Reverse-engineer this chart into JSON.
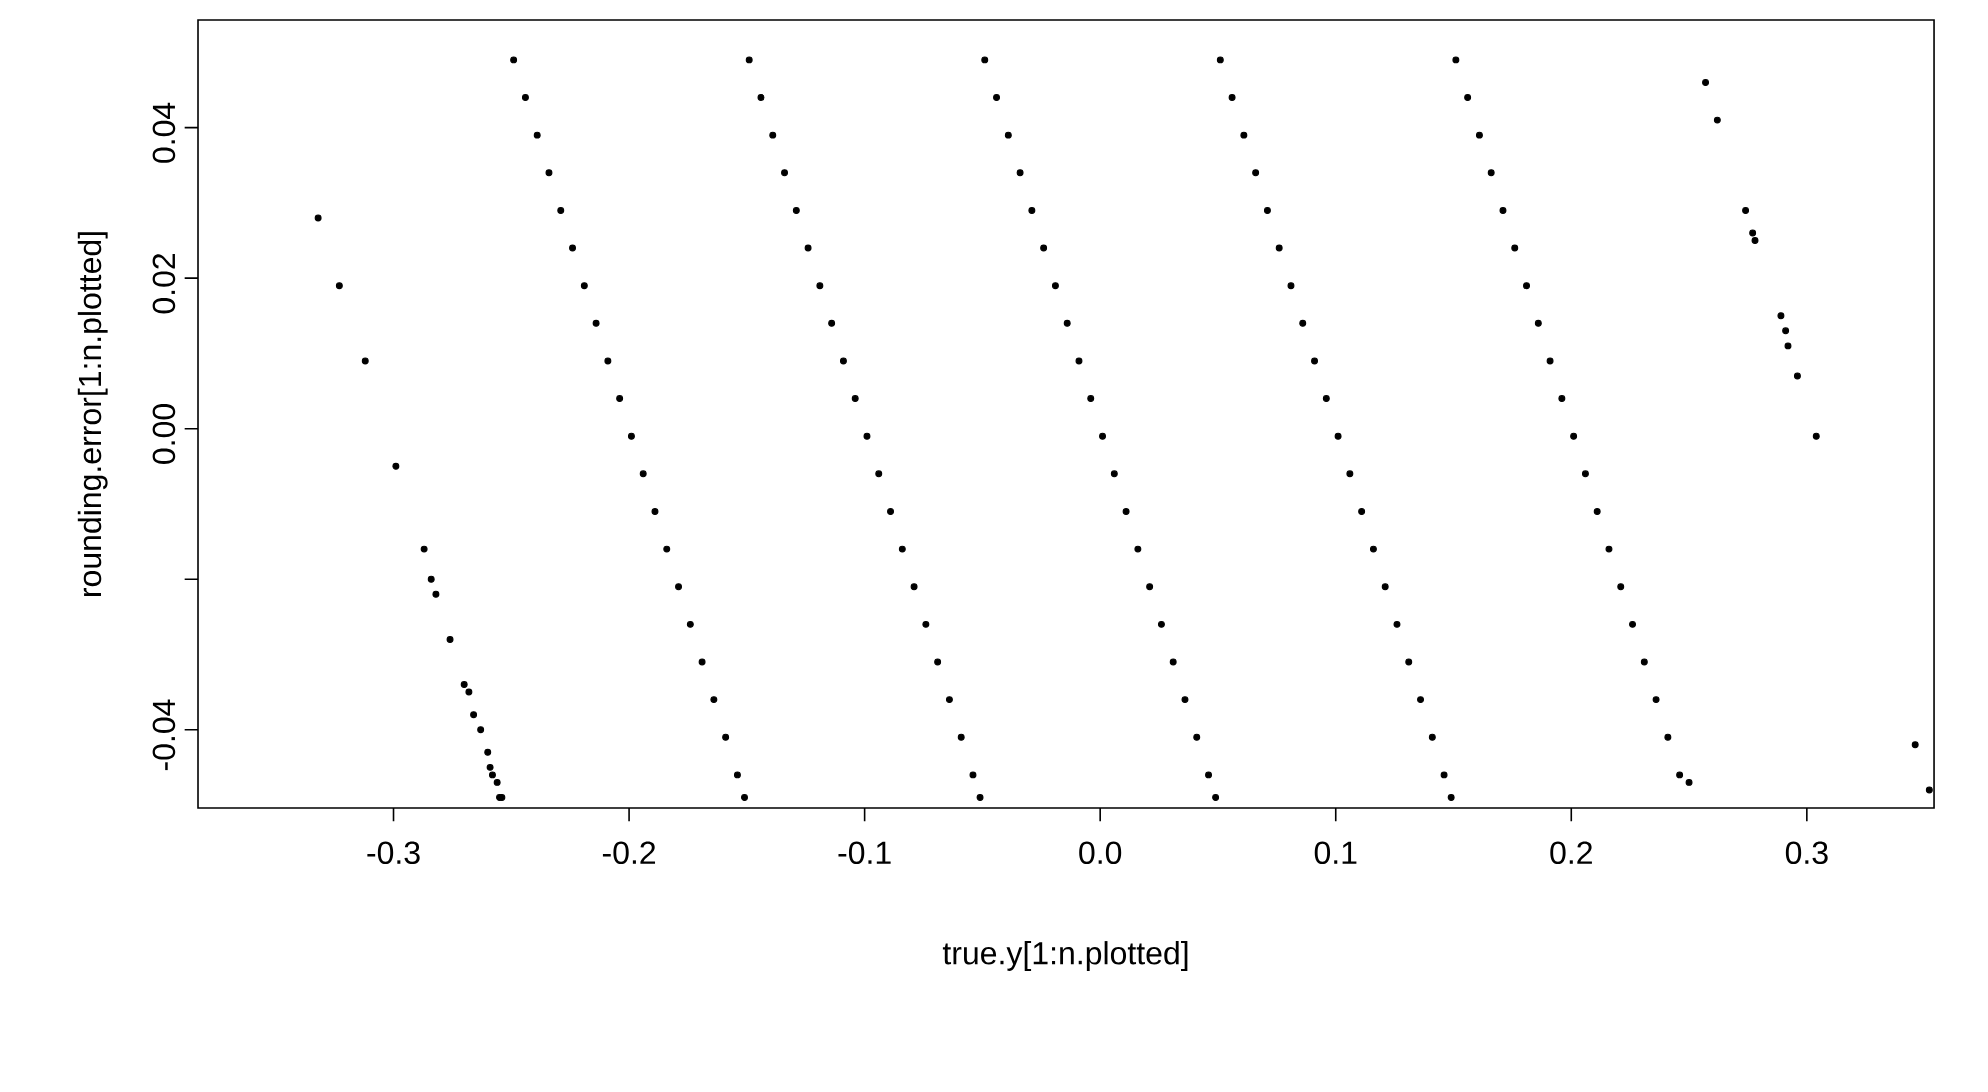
{
  "chart_data": {
    "type": "scatter",
    "xlabel": "true.y[1:n.plotted]",
    "ylabel": "rounding.error[1:n.plotted]",
    "color": "#000000",
    "marker": "circle",
    "xlim": [
      -0.383,
      0.354
    ],
    "ylim": [
      -0.0504,
      0.0543
    ],
    "xticks": [
      -0.3,
      -0.2,
      -0.1,
      {
        "value": 0,
        "label": "0.0"
      },
      0.1,
      0.2,
      0.3
    ],
    "yticks": [
      -0.04,
      {
        "value": -0.02,
        "label": null
      },
      {
        "value": 0,
        "label": "0.00"
      },
      0.02,
      0.04
    ],
    "x": [
      -0.332,
      -0.323,
      -0.312,
      -0.299,
      -0.287,
      -0.284,
      -0.282,
      -0.276,
      -0.27,
      -0.268,
      -0.266,
      -0.263,
      -0.26,
      -0.259,
      -0.258,
      -0.256,
      -0.255,
      -0.254,
      -0.249,
      -0.244,
      -0.239,
      -0.234,
      -0.229,
      -0.224,
      -0.219,
      -0.214,
      -0.209,
      -0.204,
      -0.199,
      -0.194,
      -0.189,
      -0.184,
      -0.179,
      -0.174,
      -0.169,
      -0.164,
      -0.159,
      -0.154,
      -0.151,
      -0.149,
      -0.144,
      -0.139,
      -0.134,
      -0.129,
      -0.124,
      -0.119,
      -0.114,
      -0.109,
      -0.104,
      -0.099,
      -0.094,
      -0.089,
      -0.084,
      -0.079,
      -0.074,
      -0.069,
      -0.064,
      -0.059,
      -0.054,
      -0.051,
      -0.049,
      -0.044,
      -0.039,
      -0.034,
      -0.029,
      -0.024,
      -0.019,
      -0.014,
      -0.009,
      -0.004,
      0.001,
      0.006,
      0.011,
      0.016,
      0.021,
      0.026,
      0.031,
      0.036,
      0.041,
      0.046,
      0.049,
      0.051,
      0.056,
      0.061,
      0.066,
      0.071,
      0.076,
      0.081,
      0.086,
      0.091,
      0.096,
      0.101,
      0.106,
      0.111,
      0.116,
      0.121,
      0.126,
      0.131,
      0.136,
      0.141,
      0.146,
      0.149,
      0.151,
      0.156,
      0.161,
      0.166,
      0.171,
      0.176,
      0.181,
      0.186,
      0.191,
      0.196,
      0.201,
      0.206,
      0.211,
      0.216,
      0.221,
      0.226,
      0.231,
      0.236,
      0.241,
      0.246,
      0.25,
      0.257,
      0.262,
      0.274,
      0.277,
      0.278,
      0.289,
      0.291,
      0.292,
      0.296,
      0.304,
      0.346,
      0.352
    ],
    "values": [
      0.028,
      0.019,
      0.009,
      -0.005,
      -0.016,
      -0.02,
      -0.022,
      -0.028,
      -0.034,
      -0.035,
      -0.038,
      -0.04,
      -0.043,
      -0.045,
      -0.046,
      -0.047,
      -0.049,
      -0.049,
      0.049,
      0.044,
      0.039,
      0.034,
      0.029,
      0.024,
      0.019,
      0.014,
      0.009,
      0.004,
      -0.001,
      -0.006,
      -0.011,
      -0.016,
      -0.021,
      -0.026,
      -0.031,
      -0.036,
      -0.041,
      -0.046,
      -0.049,
      0.049,
      0.044,
      0.039,
      0.034,
      0.029,
      0.024,
      0.019,
      0.014,
      0.009,
      0.004,
      -0.001,
      -0.006,
      -0.011,
      -0.016,
      -0.021,
      -0.026,
      -0.031,
      -0.036,
      -0.041,
      -0.046,
      -0.049,
      0.049,
      0.044,
      0.039,
      0.034,
      0.029,
      0.024,
      0.019,
      0.014,
      0.009,
      0.004,
      -0.001,
      -0.006,
      -0.011,
      -0.016,
      -0.021,
      -0.026,
      -0.031,
      -0.036,
      -0.041,
      -0.046,
      -0.049,
      0.049,
      0.044,
      0.039,
      0.034,
      0.029,
      0.024,
      0.019,
      0.014,
      0.009,
      0.004,
      -0.001,
      -0.006,
      -0.011,
      -0.016,
      -0.021,
      -0.026,
      -0.031,
      -0.036,
      -0.041,
      -0.046,
      -0.049,
      0.049,
      0.044,
      0.039,
      0.034,
      0.029,
      0.024,
      0.019,
      0.014,
      0.009,
      0.004,
      -0.001,
      -0.006,
      -0.011,
      -0.016,
      -0.021,
      -0.026,
      -0.031,
      -0.036,
      -0.041,
      -0.046,
      -0.047,
      0.046,
      0.041,
      0.029,
      0.026,
      0.025,
      0.015,
      0.013,
      0.011,
      0.007,
      -0.001,
      -0.042,
      -0.048
    ]
  }
}
